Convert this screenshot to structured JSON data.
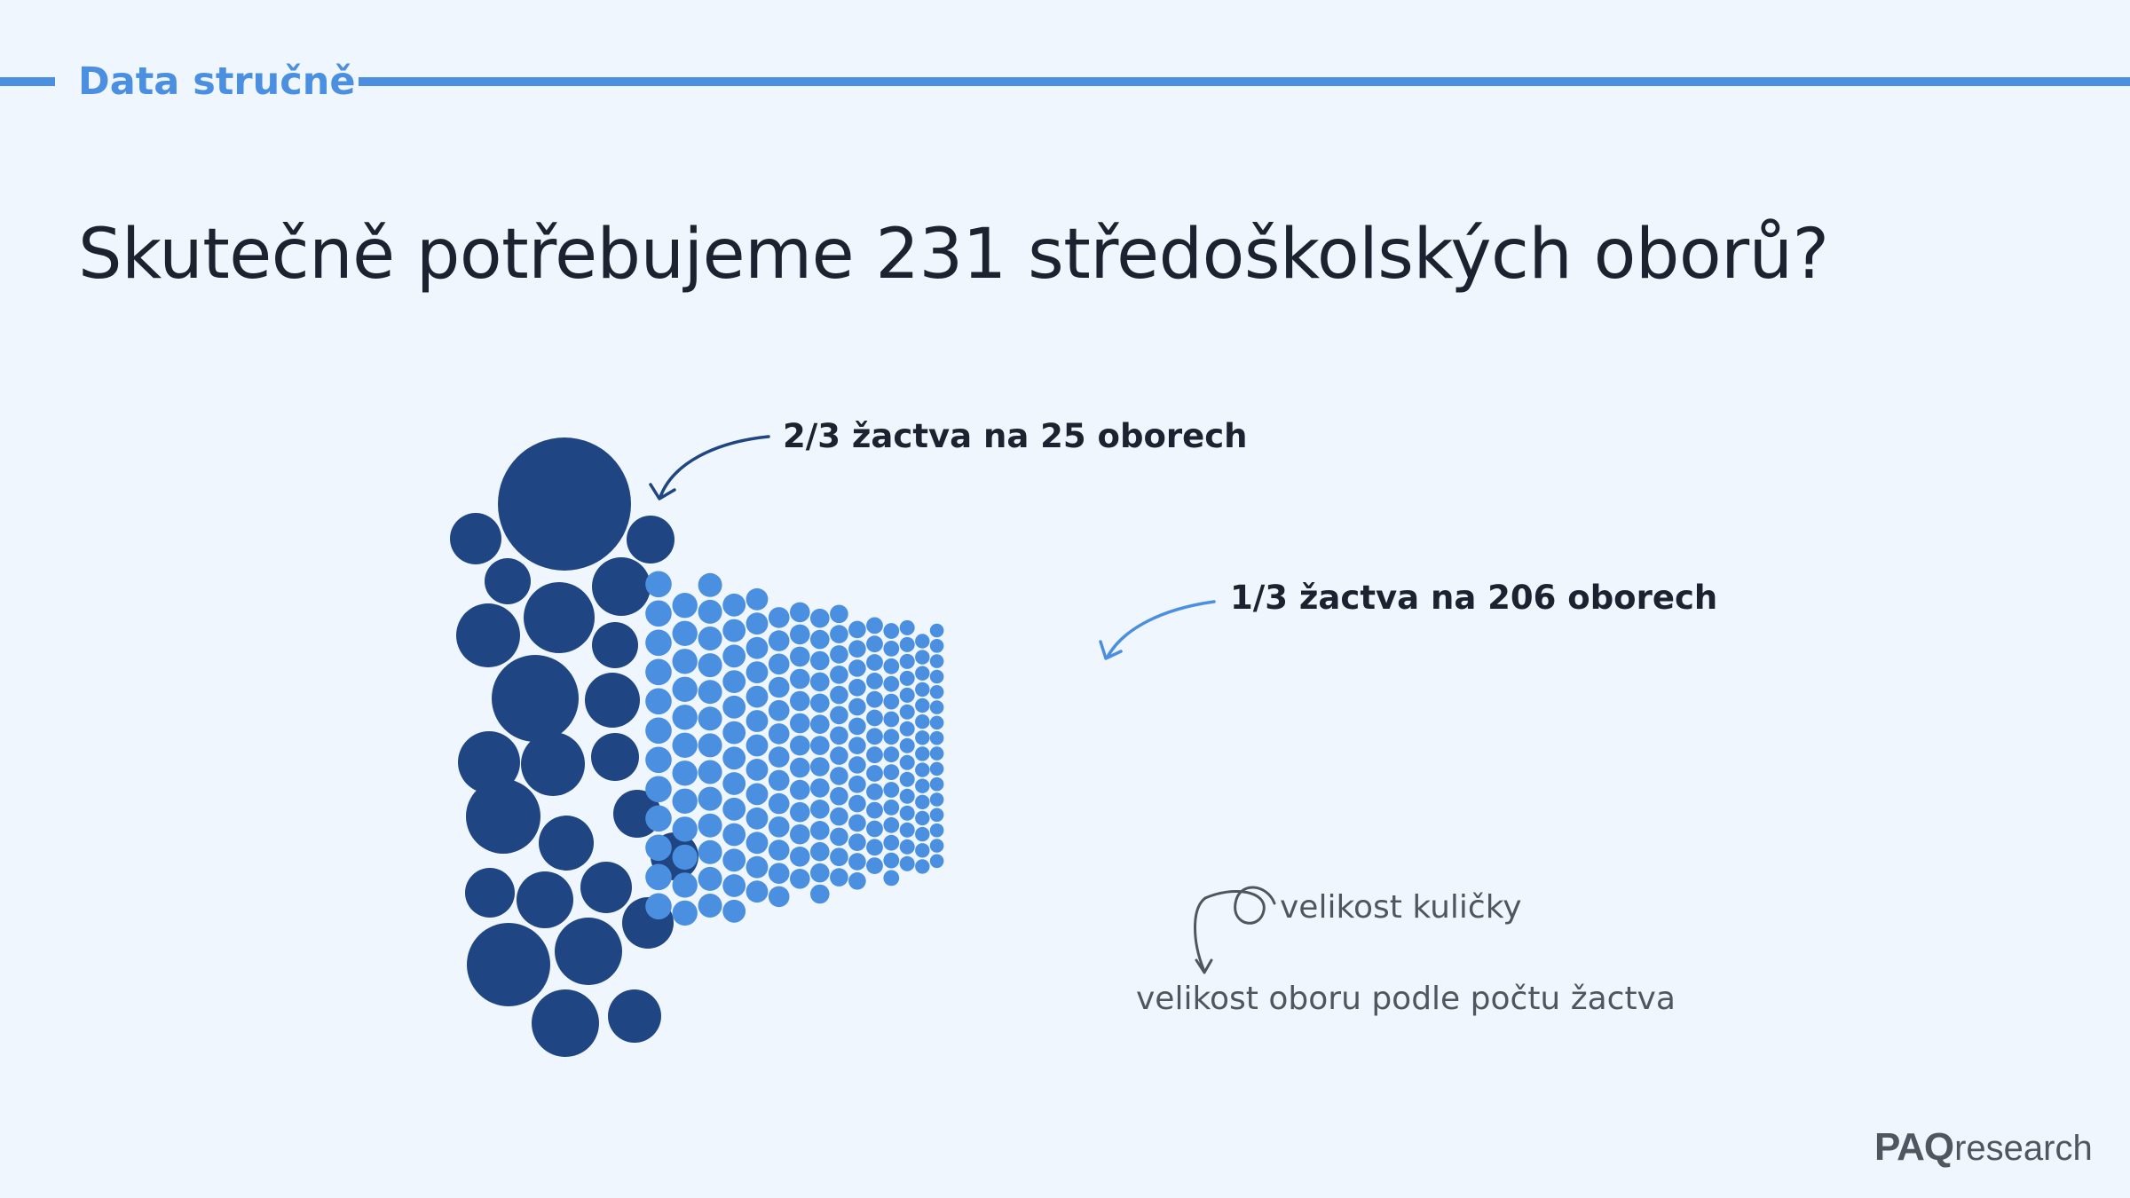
{
  "header": {
    "label": "Data stručně"
  },
  "headline": "Skutečně potřebujeme 231 středoškolských oborů?",
  "colors": {
    "major": "#204583",
    "minor": "#4a8fe0",
    "background": "#eff6fe",
    "text": "#1c2330",
    "note": "#50565f"
  },
  "logo": {
    "brand": "PAQ",
    "rest": "research"
  },
  "chart_data": {
    "type": "bubble-cluster",
    "groups": [
      {
        "label": "2/3 žactva na 25 oborech",
        "fields": 25,
        "share": "2/3",
        "color": "#204583"
      },
      {
        "label": "1/3 žactva na 206 oborech",
        "fields": 206,
        "share": "1/3",
        "color": "#4a8fe0"
      }
    ],
    "total_fields": 231,
    "legend": {
      "size_label": "velikost kuličky",
      "meaning_label": "velikost oboru podle počtu žactva"
    }
  }
}
